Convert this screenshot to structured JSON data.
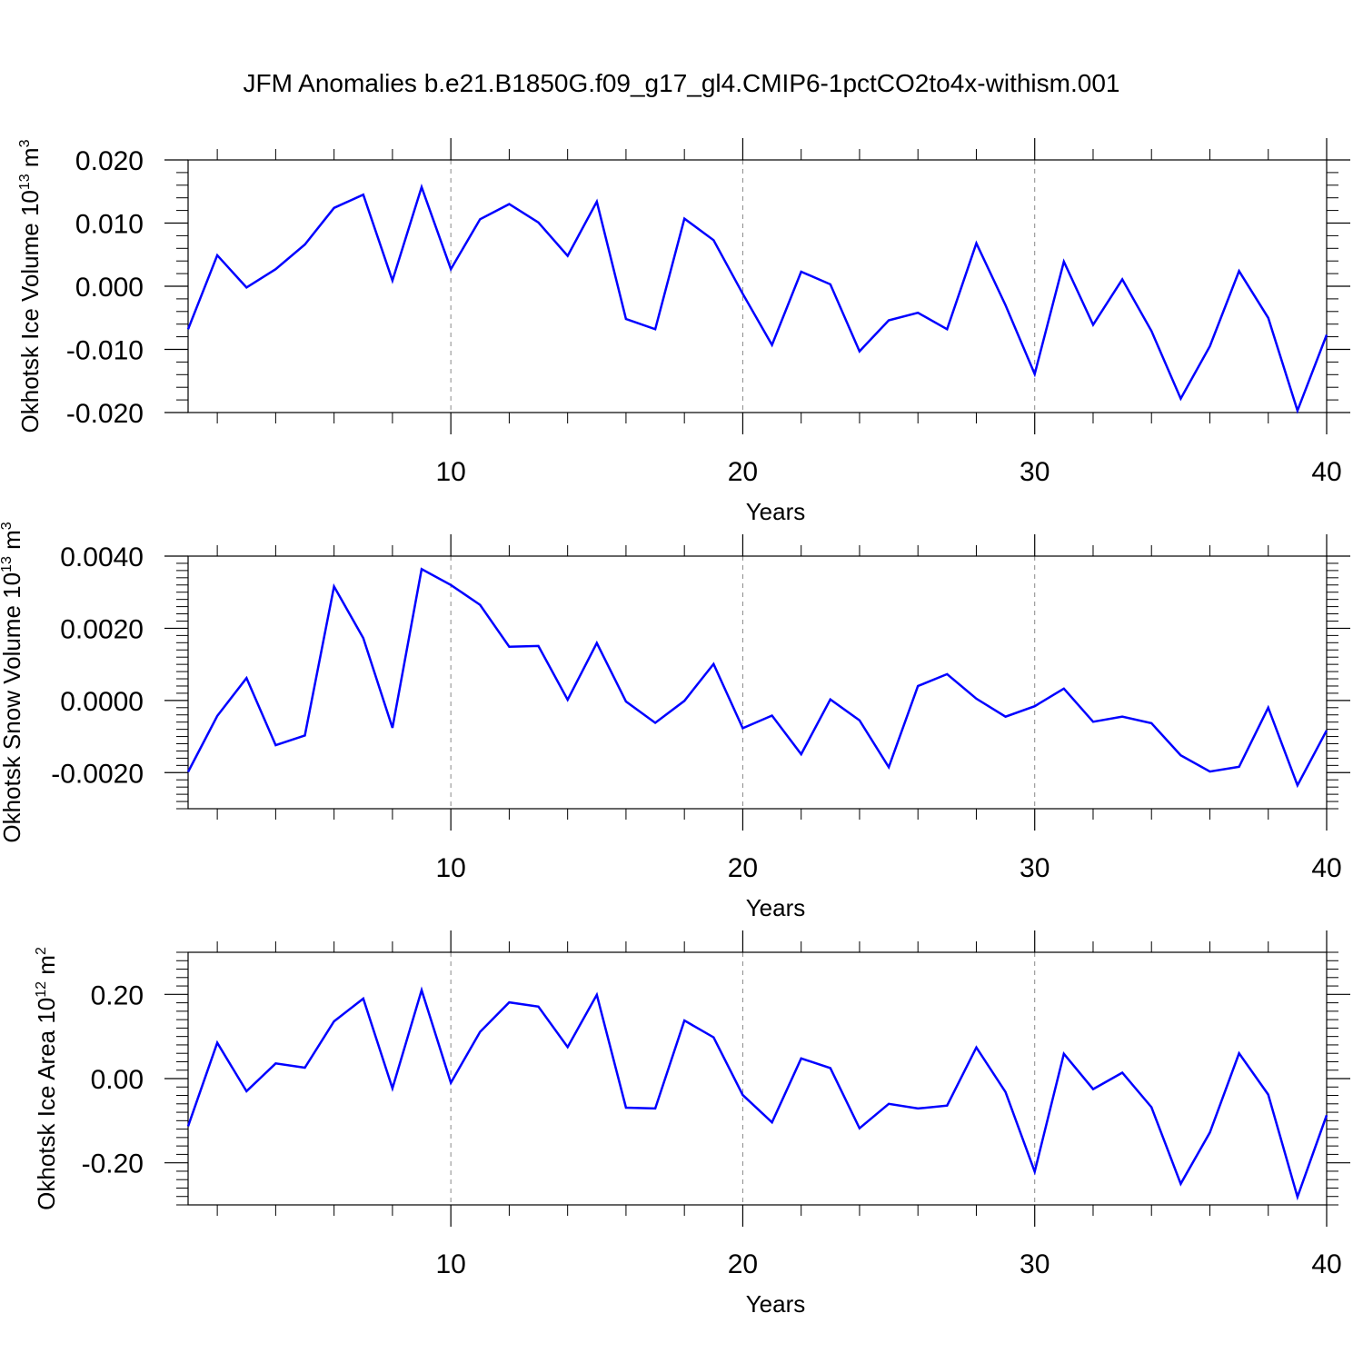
{
  "title": "JFM Anomalies b.e21.B1850G.f09_g17_gl4.CMIP6-1pctCO2to4x-withism.001",
  "colors": {
    "line": "#0000ff",
    "axis": "#000000",
    "grid": "#888888"
  },
  "chart_data": [
    {
      "type": "line",
      "title": "",
      "xlabel": "Years",
      "ylabel": {
        "text": "Okhotsk Ice Volume 10",
        "exp": "13",
        "unit": " m",
        "unit_exp": "3"
      },
      "xlim": [
        1,
        40
      ],
      "ylim": [
        -0.02,
        0.02
      ],
      "xticks": [
        10,
        20,
        30,
        40
      ],
      "xtick_labels": [
        "10",
        "20",
        "30",
        "40"
      ],
      "yticks": [
        0.02,
        0.01,
        0.0,
        -0.01,
        -0.02
      ],
      "ytick_labels": [
        "0.020",
        "0.010",
        "0.000",
        "-0.010",
        "-0.020"
      ],
      "x": [
        1,
        2,
        3,
        4,
        5,
        6,
        7,
        8,
        9,
        10,
        11,
        12,
        13,
        14,
        15,
        16,
        17,
        18,
        19,
        20,
        21,
        22,
        23,
        24,
        25,
        26,
        27,
        28,
        29,
        30,
        31,
        32,
        33,
        34,
        35,
        36,
        37,
        38,
        39,
        40
      ],
      "series": [
        {
          "name": "Okhotsk Ice Volume",
          "values": [
            -0.0068,
            0.0049,
            -0.0002,
            0.0027,
            0.0066,
            0.0124,
            0.0145,
            0.0009,
            0.0157,
            0.0027,
            0.0106,
            0.013,
            0.0101,
            0.0048,
            0.0134,
            -0.0052,
            -0.0068,
            0.0107,
            0.0073,
            -0.0012,
            -0.0093,
            0.0023,
            0.0003,
            -0.0103,
            -0.0054,
            -0.0042,
            -0.0068,
            0.0068,
            -0.003,
            -0.0139,
            0.0039,
            -0.0061,
            0.0011,
            -0.0071,
            -0.0178,
            -0.0095,
            0.0024,
            -0.005,
            -0.0197,
            -0.0077
          ]
        }
      ]
    },
    {
      "type": "line",
      "title": "",
      "xlabel": "Years",
      "ylabel": {
        "text": "Okhotsk Snow Volume 10",
        "exp": "13",
        "unit": " m",
        "unit_exp": "3"
      },
      "xlim": [
        1,
        40
      ],
      "ylim": [
        -0.003,
        0.004
      ],
      "xticks": [
        10,
        20,
        30,
        40
      ],
      "xtick_labels": [
        "10",
        "20",
        "30",
        "40"
      ],
      "yticks": [
        0.004,
        0.002,
        0.0,
        -0.002
      ],
      "ytick_labels": [
        "0.0040",
        "0.0020",
        "0.0000",
        "-0.0020"
      ],
      "x": [
        1,
        2,
        3,
        4,
        5,
        6,
        7,
        8,
        9,
        10,
        11,
        12,
        13,
        14,
        15,
        16,
        17,
        18,
        19,
        20,
        21,
        22,
        23,
        24,
        25,
        26,
        27,
        28,
        29,
        30,
        31,
        32,
        33,
        34,
        35,
        36,
        37,
        38,
        39,
        40
      ],
      "series": [
        {
          "name": "Okhotsk Snow Volume",
          "values": [
            -0.00198,
            -0.00043,
            0.00062,
            -0.00124,
            -0.00097,
            0.00316,
            0.00173,
            -0.00076,
            0.00364,
            0.0032,
            0.00265,
            0.00149,
            0.00151,
            2e-05,
            0.00159,
            -3e-05,
            -0.00062,
            -1e-05,
            0.00101,
            -0.00077,
            -0.00042,
            -0.00149,
            3e-05,
            -0.00055,
            -0.00185,
            0.0004,
            0.00073,
            5e-05,
            -0.00045,
            -0.00016,
            0.00033,
            -0.00059,
            -0.00045,
            -0.00063,
            -0.00152,
            -0.00197,
            -0.00184,
            -0.0002,
            -0.00235,
            -0.00083
          ]
        }
      ]
    },
    {
      "type": "line",
      "title": "",
      "xlabel": "Years",
      "ylabel": {
        "text": "Okhotsk Ice Area 10",
        "exp": "12",
        "unit": " m",
        "unit_exp": "2"
      },
      "xlim": [
        1,
        40
      ],
      "ylim": [
        -0.3,
        0.3
      ],
      "xticks": [
        10,
        20,
        30,
        40
      ],
      "xtick_labels": [
        "10",
        "20",
        "30",
        "40"
      ],
      "yticks": [
        0.2,
        0.0,
        -0.2
      ],
      "ytick_labels": [
        "0.20",
        "0.00",
        "-0.20"
      ],
      "x": [
        1,
        2,
        3,
        4,
        5,
        6,
        7,
        8,
        9,
        10,
        11,
        12,
        13,
        14,
        15,
        16,
        17,
        18,
        19,
        20,
        21,
        22,
        23,
        24,
        25,
        26,
        27,
        28,
        29,
        30,
        31,
        32,
        33,
        34,
        35,
        36,
        37,
        38,
        39,
        40
      ],
      "series": [
        {
          "name": "Okhotsk Ice Area",
          "values": [
            -0.113,
            0.085,
            -0.03,
            0.036,
            0.026,
            0.136,
            0.19,
            -0.023,
            0.21,
            -0.01,
            0.111,
            0.181,
            0.171,
            0.075,
            0.199,
            -0.069,
            -0.071,
            0.138,
            0.098,
            -0.039,
            -0.104,
            0.048,
            0.025,
            -0.118,
            -0.06,
            -0.071,
            -0.064,
            0.074,
            -0.032,
            -0.221,
            0.059,
            -0.025,
            0.014,
            -0.068,
            -0.25,
            -0.128,
            0.06,
            -0.038,
            -0.281,
            -0.087
          ]
        }
      ]
    }
  ]
}
